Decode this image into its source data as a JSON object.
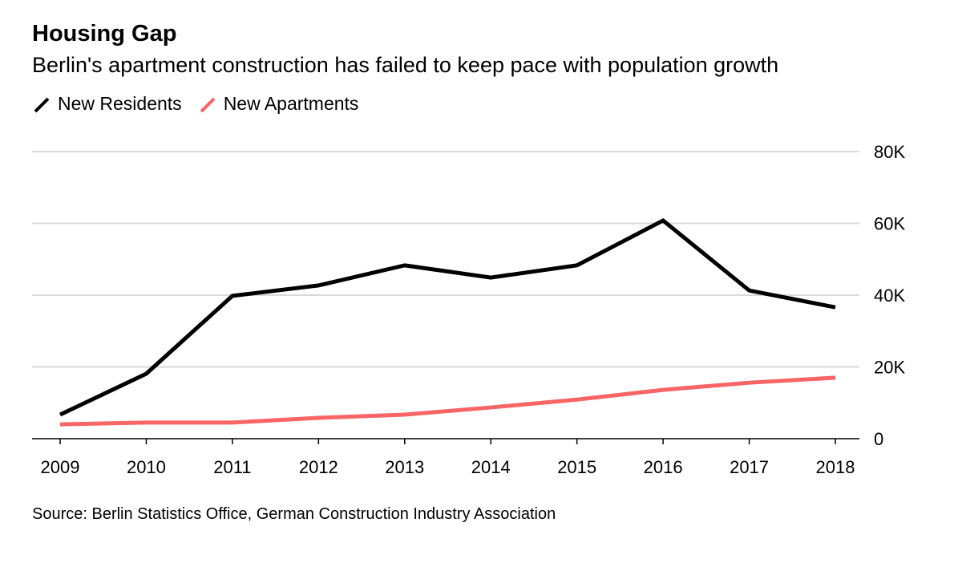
{
  "chart_data": {
    "type": "line",
    "title": "Housing Gap",
    "subtitle": "Berlin's apartment construction has failed to keep pace with population growth",
    "xlabel": "",
    "ylabel": "",
    "x": [
      "2009",
      "2010",
      "2011",
      "2012",
      "2013",
      "2014",
      "2015",
      "2016",
      "2017",
      "2018"
    ],
    "ylim": [
      0,
      80000
    ],
    "yticks": [
      0,
      20000,
      40000,
      60000,
      80000
    ],
    "ytick_labels": [
      "0",
      "20K",
      "40K",
      "60K",
      "80K"
    ],
    "grid": true,
    "legend_placement": "top-left",
    "series": [
      {
        "name": "New Residents",
        "color": "#000000",
        "values": [
          6700,
          18100,
          39800,
          42700,
          48300,
          44900,
          48300,
          60800,
          41300,
          36600
        ]
      },
      {
        "name": "New Apartments",
        "color": "#f96464",
        "values": [
          4000,
          4500,
          4500,
          5800,
          6700,
          8700,
          10900,
          13600,
          15600,
          17000
        ]
      }
    ],
    "source": "Source: Berlin Statistics Office, German Construction Industry Association"
  }
}
